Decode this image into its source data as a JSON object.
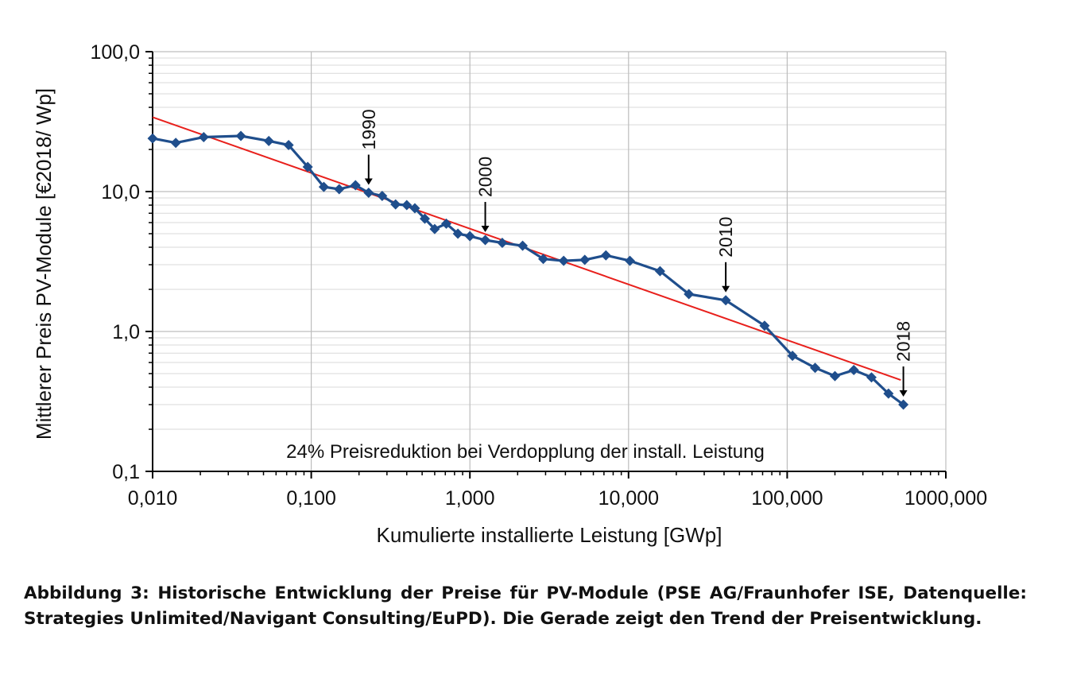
{
  "chart_data": {
    "type": "line",
    "xlabel": "Kumulierte installierte Leistung [GWp]",
    "ylabel": "Mittlerer Preis PV-Module [€2018/ Wp]",
    "xscale": "log",
    "yscale": "log",
    "xlim": [
      0.01,
      1000
    ],
    "ylim": [
      0.1,
      100
    ],
    "x_tick_labels": [
      "0,010",
      "0,100",
      "1,000",
      "10,000",
      "100,000",
      "1000,000"
    ],
    "y_tick_labels": [
      "0,1",
      "1,0",
      "10,0",
      "100,0"
    ],
    "grid": true,
    "series": [
      {
        "type": "line",
        "color": "#1f4e8c",
        "marker": "diamond",
        "points": [
          [
            0.01,
            24.0
          ],
          [
            0.014,
            22.3
          ],
          [
            0.021,
            24.5
          ],
          [
            0.036,
            25.0
          ],
          [
            0.054,
            23.0
          ],
          [
            0.072,
            21.5
          ],
          [
            0.095,
            15.0
          ],
          [
            0.12,
            10.8
          ],
          [
            0.15,
            10.4
          ],
          [
            0.19,
            11.1
          ],
          [
            0.23,
            9.8
          ],
          [
            0.28,
            9.3
          ],
          [
            0.34,
            8.1
          ],
          [
            0.4,
            8.0
          ],
          [
            0.45,
            7.6
          ],
          [
            0.52,
            6.4
          ],
          [
            0.6,
            5.4
          ],
          [
            0.71,
            5.9
          ],
          [
            0.84,
            5.0
          ],
          [
            1.0,
            4.8
          ],
          [
            1.25,
            4.5
          ],
          [
            1.6,
            4.3
          ],
          [
            2.15,
            4.1
          ],
          [
            2.9,
            3.3
          ],
          [
            3.9,
            3.2
          ],
          [
            5.3,
            3.25
          ],
          [
            7.2,
            3.5
          ],
          [
            10.2,
            3.2
          ],
          [
            15.8,
            2.7
          ],
          [
            24.0,
            1.85
          ],
          [
            41.0,
            1.67
          ],
          [
            72.0,
            1.1
          ],
          [
            108.0,
            0.67
          ],
          [
            150.0,
            0.55
          ],
          [
            200.0,
            0.48
          ],
          [
            263.0,
            0.53
          ],
          [
            340.0,
            0.47
          ],
          [
            435.0,
            0.36
          ],
          [
            540.0,
            0.3
          ]
        ]
      },
      {
        "type": "trend",
        "color": "#e8201c",
        "points": [
          [
            0.01,
            34.0
          ],
          [
            520.0,
            0.45
          ]
        ]
      }
    ],
    "annotations": [
      {
        "text": "1990",
        "x": 0.23,
        "y": 9.8
      },
      {
        "text": "2000",
        "x": 1.25,
        "y": 4.5
      },
      {
        "text": "2010",
        "x": 41.0,
        "y": 1.67
      },
      {
        "text": "2018",
        "x": 540.0,
        "y": 0.3
      }
    ],
    "note": "24% Preisreduktion bei Verdopplung der install. Leistung"
  },
  "caption": "Abbildung 3: Historische Entwicklung der Preise für PV-Module (PSE AG/Fraunhofer ISE, Datenquelle: Strategies Unlimited/Navigant Consulting/EuPD). Die Gerade zeigt den Trend der Preisentwicklung."
}
